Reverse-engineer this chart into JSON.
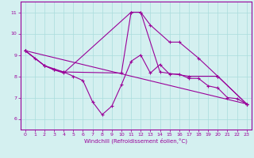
{
  "x_all": [
    0,
    1,
    2,
    3,
    4,
    5,
    6,
    7,
    8,
    9,
    10,
    11,
    12,
    13,
    14,
    15,
    16,
    17,
    18,
    19,
    20,
    21,
    22,
    23
  ],
  "line1": [
    9.2,
    8.85,
    8.5,
    8.3,
    8.2,
    8.0,
    7.8,
    6.8,
    6.2,
    6.6,
    7.6,
    8.7,
    9.0,
    8.15,
    8.55,
    8.1,
    8.1,
    7.9,
    7.9,
    7.55,
    7.45,
    7.0,
    6.95,
    6.7
  ],
  "line2_x": [
    0,
    2,
    4,
    10,
    11,
    12,
    13,
    15,
    16,
    18,
    20,
    23
  ],
  "line2_y": [
    9.2,
    8.5,
    8.2,
    8.15,
    11.0,
    11.0,
    10.4,
    9.6,
    9.6,
    8.85,
    8.0,
    6.7
  ],
  "line3_x": [
    0,
    2,
    3,
    4,
    11,
    12,
    14,
    17,
    20,
    23
  ],
  "line3_y": [
    9.2,
    8.5,
    8.3,
    8.15,
    11.0,
    11.0,
    8.2,
    8.0,
    8.0,
    6.7
  ],
  "line4_x": [
    0,
    23
  ],
  "line4_y": [
    9.2,
    6.7
  ],
  "color": "#990099",
  "bg_color": "#d4f0f0",
  "grid_color": "#aadddd",
  "xlabel": "Windchill (Refroidissement éolien,°C)",
  "ylim": [
    5.5,
    11.5
  ],
  "xlim": [
    -0.5,
    23.5
  ],
  "yticks": [
    6,
    7,
    8,
    9,
    10,
    11
  ],
  "xticks": [
    0,
    1,
    2,
    3,
    4,
    5,
    6,
    7,
    8,
    9,
    10,
    11,
    12,
    13,
    14,
    15,
    16,
    17,
    18,
    19,
    20,
    21,
    22,
    23
  ]
}
